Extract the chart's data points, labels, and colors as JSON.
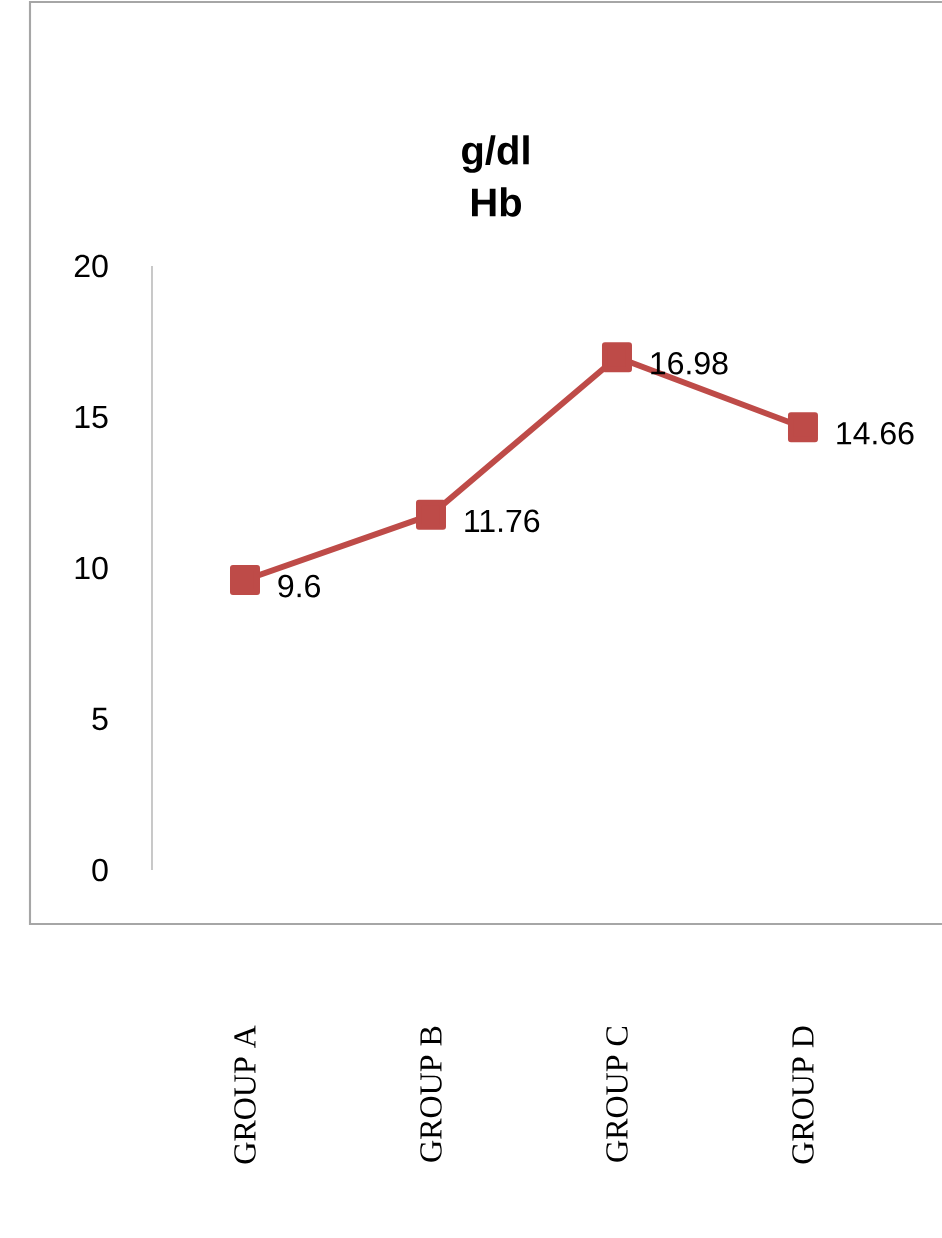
{
  "chart_data": {
    "type": "line",
    "title": "g/dl",
    "subtitle": "Hb",
    "categories": [
      "GROUP A",
      "GROUP B",
      "GROUP C",
      "GROUP D"
    ],
    "series": [
      {
        "color": "#be4b48",
        "values": [
          9.6,
          11.76,
          16.98,
          14.66
        ]
      }
    ],
    "ylim": [
      0,
      20
    ],
    "yticks": [
      0,
      5,
      10,
      15,
      20
    ],
    "marker": "square",
    "line_style": "solid",
    "data_labels": true
  }
}
